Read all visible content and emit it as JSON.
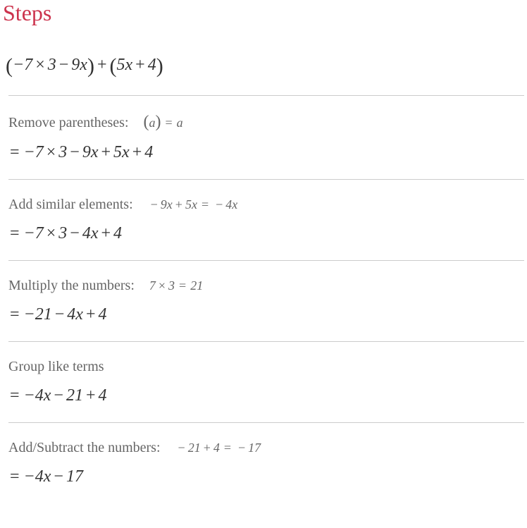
{
  "title": "Steps",
  "initial_expression": "(−7 × 3 − 9x) + (5x + 4)",
  "steps": [
    {
      "label": "Remove parentheses:",
      "hint": "(a) = a",
      "result": "= −7 × 3 − 9x + 5x + 4"
    },
    {
      "label": "Add similar elements:",
      "hint": "− 9x + 5x = −4x",
      "result": "= −7 × 3 − 4x + 4"
    },
    {
      "label": "Multiply the numbers:",
      "hint": "7 × 3 = 21",
      "result": "= −21 − 4x + 4"
    },
    {
      "label": "Group like terms",
      "hint": "",
      "result": "= −4x − 21 + 4"
    },
    {
      "label": "Add/Subtract the numbers:",
      "hint": "− 21 + 4 = −17",
      "result": "= −4x − 17"
    }
  ],
  "colors": {
    "title": "#cc334d",
    "text_primary": "#333333",
    "text_secondary": "#666666",
    "divider": "#cccccc",
    "background": "#ffffff"
  },
  "typography": {
    "title_fontsize": 32,
    "expression_fontsize": 24,
    "step_fontsize": 20,
    "hint_fontsize": 18
  }
}
